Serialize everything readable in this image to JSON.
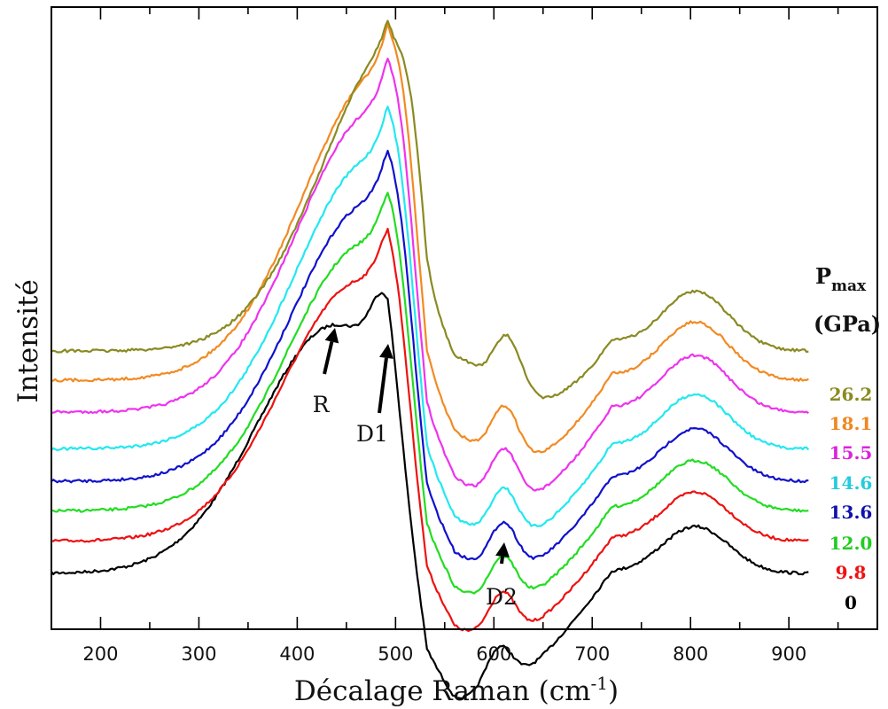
{
  "chart_data": {
    "type": "line",
    "xlabel": "Décalage Raman (cm",
    "xlabel_sup": "-1",
    "xlabel_close": ")",
    "ylabel": "Intensité",
    "xlim": [
      150,
      990
    ],
    "xticks": [
      200,
      300,
      400,
      500,
      600,
      700,
      800,
      900
    ],
    "y_ticks_labeled": false,
    "grid": false,
    "legend": {
      "title_main": "P",
      "title_sub": "max",
      "title_unit": "(GPa)",
      "placement": "right"
    },
    "series": [
      {
        "name": "0",
        "color": "#000000",
        "label_color": "#000000"
      },
      {
        "name": "9.8",
        "color": "#ee1111",
        "label_color": "#ee1111"
      },
      {
        "name": "12.0",
        "color": "#22dd22",
        "label_color": "#22cc22"
      },
      {
        "name": "13.6",
        "color": "#1111cc",
        "label_color": "#1111aa"
      },
      {
        "name": "14.6",
        "color": "#22e8f0",
        "label_color": "#22ccdd"
      },
      {
        "name": "15.5",
        "color": "#ee33ee",
        "label_color": "#dd22dd"
      },
      {
        "name": "18.1",
        "color": "#f28a22",
        "label_color": "#ee8822"
      },
      {
        "name": "26.2",
        "color": "#8a8a22",
        "label_color": "#8a8a22"
      }
    ],
    "annotations": [
      {
        "label": "R",
        "x": 437
      },
      {
        "label": "D1",
        "x": 490
      },
      {
        "label": "D2",
        "x": 605
      }
    ]
  }
}
